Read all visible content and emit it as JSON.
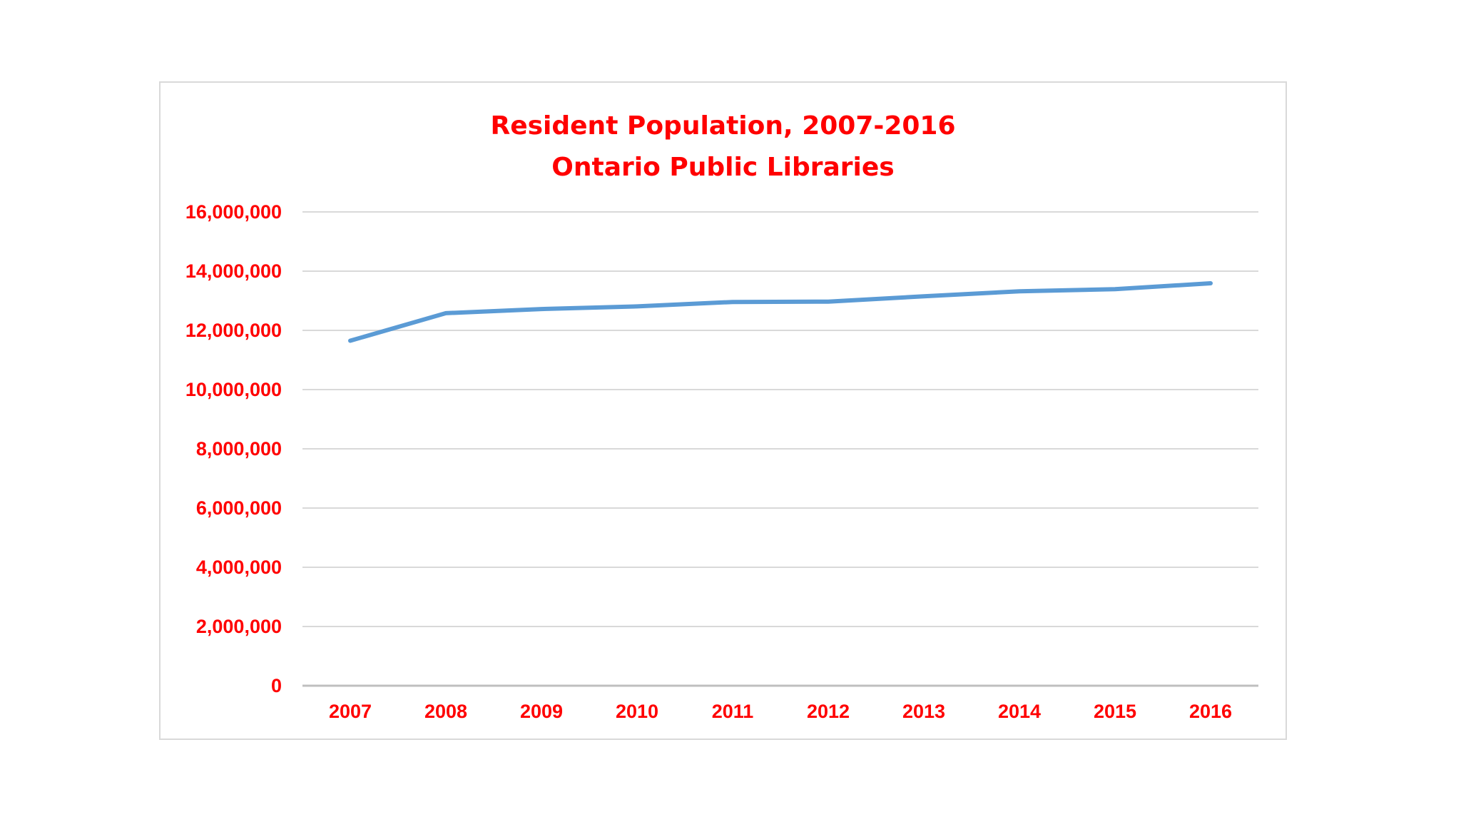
{
  "chart_data": {
    "type": "line",
    "title": "Resident Population, 2007-2016",
    "subtitle": "Ontario Public Libraries",
    "xlabel": "",
    "ylabel": "",
    "categories": [
      "2007",
      "2008",
      "2009",
      "2010",
      "2011",
      "2012",
      "2013",
      "2014",
      "2015",
      "2016"
    ],
    "series": [
      {
        "values": [
          11650000,
          12580000,
          12720000,
          12810000,
          12960000,
          12970000,
          13150000,
          13320000,
          13390000,
          13590000
        ]
      }
    ],
    "ylim": [
      0,
      16000000
    ],
    "yticks": [
      0,
      2000000,
      4000000,
      6000000,
      8000000,
      10000000,
      12000000,
      14000000,
      16000000
    ],
    "ytick_labels": [
      "0",
      "2,000,000",
      "4,000,000",
      "6,000,000",
      "8,000,000",
      "10,000,000",
      "12,000,000",
      "14,000,000",
      "16,000,000"
    ],
    "grid": true,
    "legend": "none",
    "colors": {
      "line": "#5b9bd5",
      "text": "#ff0000",
      "grid": "#d9d9d9"
    }
  }
}
